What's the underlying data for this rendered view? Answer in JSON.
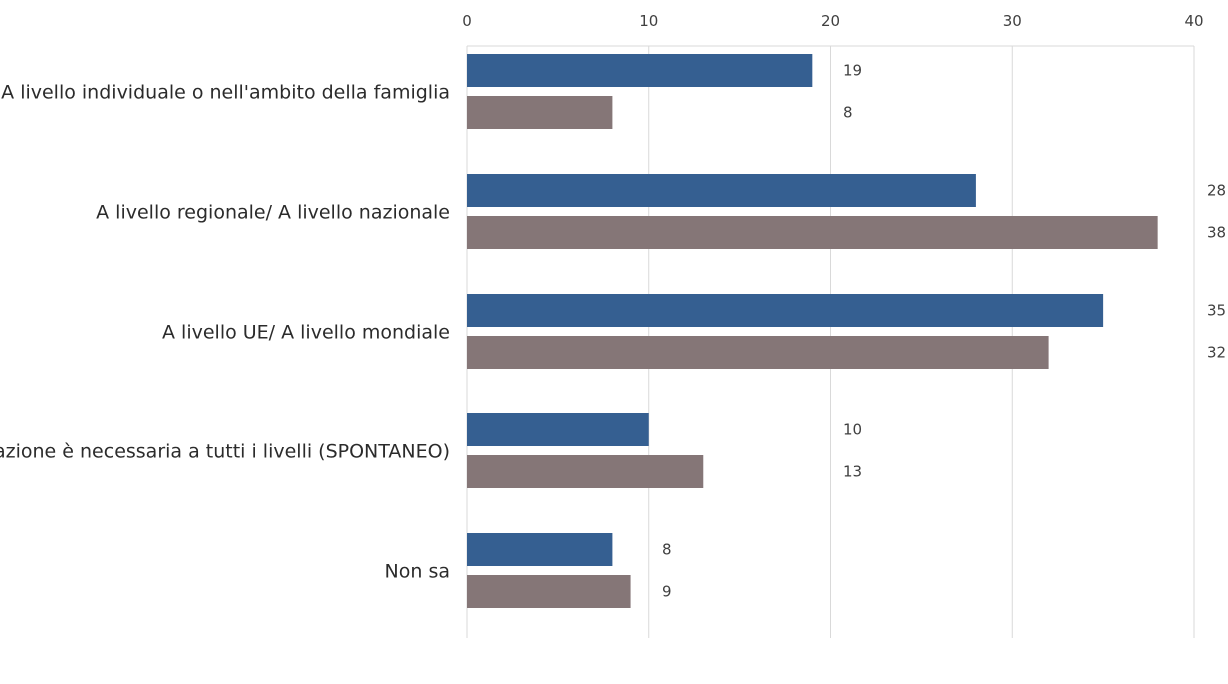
{
  "chart_data": {
    "type": "bar",
    "orientation": "horizontal",
    "categories": [
      "A livello individuale o nell'ambito della famiglia",
      "A livello regionale/ A livello nazionale",
      "A livello UE/ A livello mondiale",
      "L'azione è necessaria a tutti i livelli (SPONTANEO)",
      "Non sa"
    ],
    "series": [
      {
        "values": [
          19,
          28,
          35,
          10,
          8
        ],
        "color": "#355f91"
      },
      {
        "values": [
          8,
          38,
          32,
          13,
          9
        ],
        "color": "#857677"
      }
    ],
    "xlim": [
      0,
      40
    ],
    "x_ticks": [
      "0",
      "10",
      "20",
      "30",
      "40"
    ],
    "grid": true,
    "axis_position": "top",
    "legend": "none"
  }
}
